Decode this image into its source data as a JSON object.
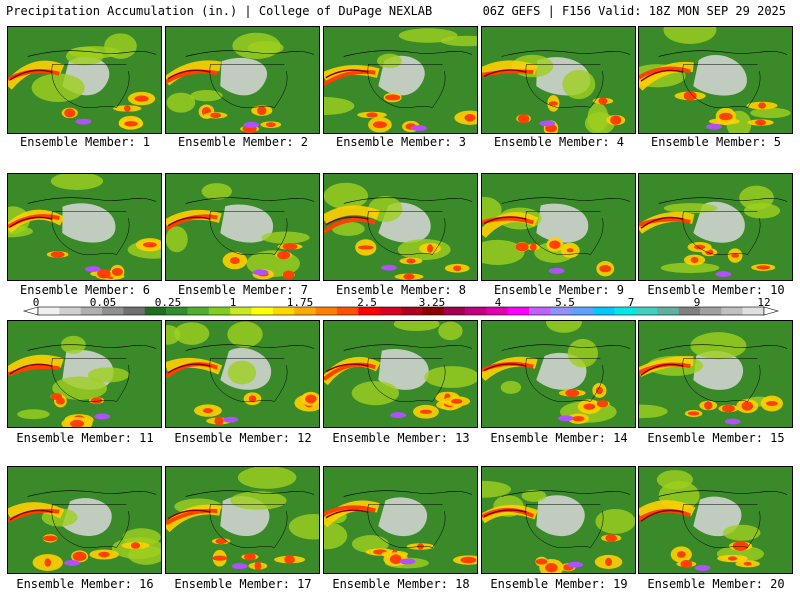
{
  "header": {
    "left": "Precipitation Accumulation (in.) | College of DuPage NEXLAB",
    "right": "06Z GEFS | F156 Valid: 18Z MON SEP 29 2025"
  },
  "panels": [
    {
      "label": "Ensemble Member: 1"
    },
    {
      "label": "Ensemble Member: 2"
    },
    {
      "label": "Ensemble Member: 3"
    },
    {
      "label": "Ensemble Member: 4"
    },
    {
      "label": "Ensemble Member: 5"
    },
    {
      "label": "Ensemble Member: 6"
    },
    {
      "label": "Ensemble Member: 7"
    },
    {
      "label": "Ensemble Member: 8"
    },
    {
      "label": "Ensemble Member: 9"
    },
    {
      "label": "Ensemble Member: 10"
    },
    {
      "label": "Ensemble Member: 11"
    },
    {
      "label": "Ensemble Member: 12"
    },
    {
      "label": "Ensemble Member: 13"
    },
    {
      "label": "Ensemble Member: 14"
    },
    {
      "label": "Ensemble Member: 15"
    },
    {
      "label": "Ensemble Member: 16"
    },
    {
      "label": "Ensemble Member: 17"
    },
    {
      "label": "Ensemble Member: 18"
    },
    {
      "label": "Ensemble Member: 19"
    },
    {
      "label": "Ensemble Member: 20"
    }
  ],
  "colorbar": {
    "labels": [
      "0",
      "0.05",
      "0.25",
      "1",
      "1.75",
      "2.5",
      "3.25",
      "4",
      "5.5",
      "7",
      "9",
      "12"
    ],
    "colors": [
      "#f0f0f0",
      "#d0d0d0",
      "#b0b0b0",
      "#909090",
      "#707070",
      "#1f6f1f",
      "#2f8f2f",
      "#4fb02f",
      "#7fcf1f",
      "#c8e81f",
      "#ffff00",
      "#ffd700",
      "#ffaa00",
      "#ff7f00",
      "#ff5000",
      "#ff0000",
      "#d8001f",
      "#b0001f",
      "#8b0000",
      "#a0004f",
      "#c0007f",
      "#e000b0",
      "#ff00ff",
      "#c060ff",
      "#9090ff",
      "#60a0ff",
      "#00c8ff",
      "#00e8e8",
      "#40d0c0",
      "#60b0a0",
      "#808080",
      "#a0a0a0",
      "#c0c0c0",
      "#e0e0e0"
    ]
  },
  "map_colors": {
    "base": "#3a8a2a",
    "dry": "#d8d8d8",
    "light": "#9fd01f",
    "moderate": "#ffd000",
    "heavy": "#ff4000",
    "extreme": "#8b0000",
    "tropical": "#b050ff"
  }
}
